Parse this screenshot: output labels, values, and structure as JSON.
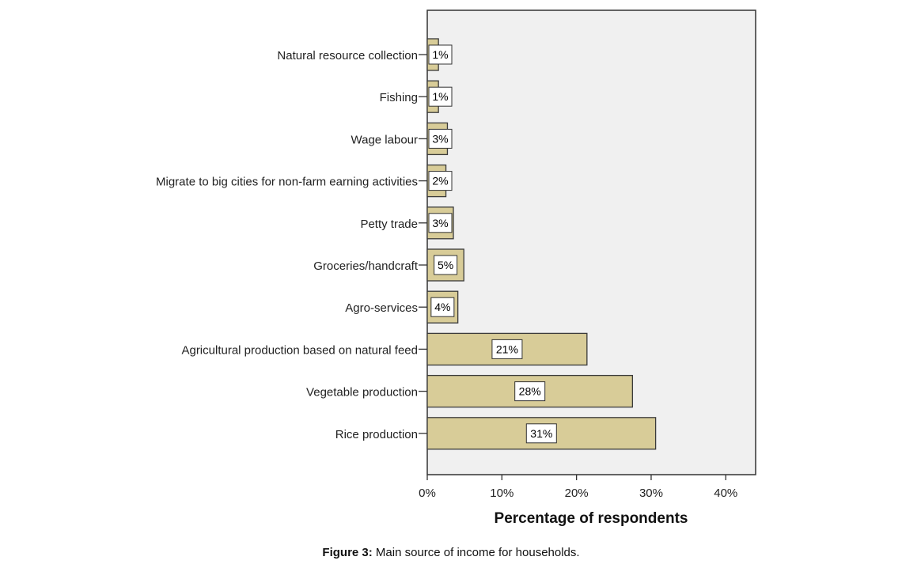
{
  "chart_data": {
    "type": "bar",
    "orientation": "horizontal",
    "categories": [
      "Natural resource collection",
      "Fishing",
      "Wage labour",
      "Migrate to big cities for non-farm earning activities",
      "Petty trade",
      "Groceries/handcraft",
      "Agro-services",
      "Agricultural production based on natural feed",
      "Vegetable production",
      "Rice production"
    ],
    "values": [
      1.5,
      1.5,
      2.7,
      2.5,
      3.5,
      4.9,
      4.1,
      21.4,
      27.5,
      30.6
    ],
    "data_labels": [
      "1%",
      "1%",
      "3%",
      "2%",
      "3%",
      "5%",
      "4%",
      "21%",
      "28%",
      "31%"
    ],
    "xlabel": "Percentage of respondents",
    "ylabel": "",
    "xlim": [
      0,
      44
    ],
    "xticks": [
      0,
      10,
      20,
      30,
      40
    ],
    "xtick_labels": [
      "0%",
      "10%",
      "20%",
      "30%",
      "40%"
    ],
    "grid": false,
    "colors": {
      "bar": "#d8cc98",
      "bar_edge": "#3a3a3a",
      "plot_background": "#f0f0f0",
      "label_box": "#ffffff"
    }
  },
  "caption": {
    "label": "Figure 3:",
    "text": " Main source of income for households."
  }
}
